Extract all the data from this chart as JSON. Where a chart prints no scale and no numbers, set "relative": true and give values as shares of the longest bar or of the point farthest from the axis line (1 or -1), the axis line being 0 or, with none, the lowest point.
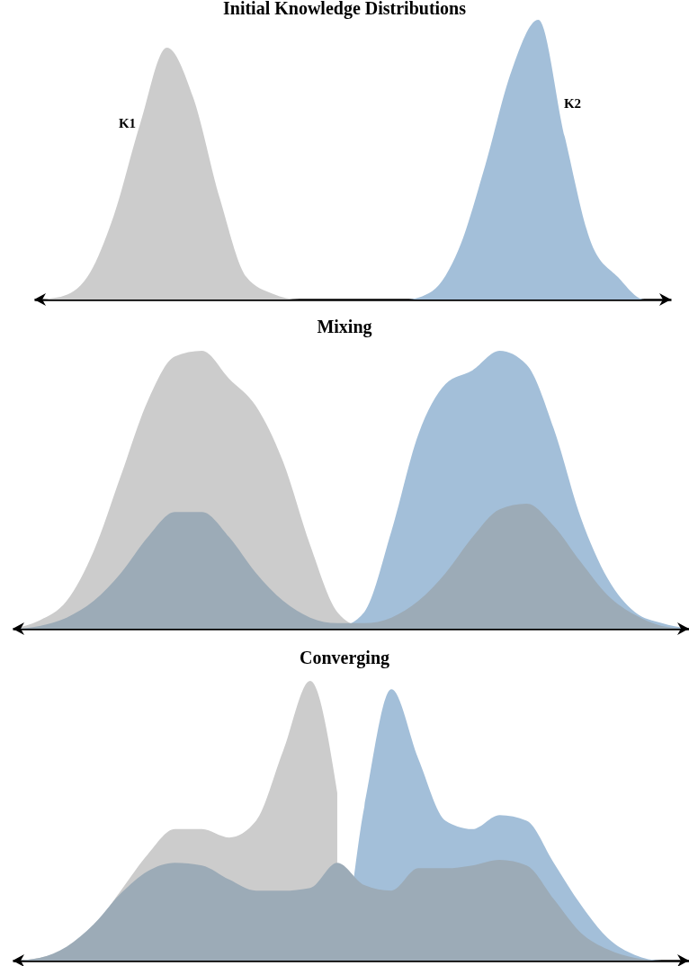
{
  "chart_data": [
    {
      "type": "area",
      "title": "Initial Knowledge Distributions",
      "relative": true,
      "categories": [
        null,
        null,
        null,
        null,
        null,
        null,
        null,
        null,
        null,
        null,
        null,
        null,
        null,
        null,
        null,
        null,
        null,
        null,
        null,
        null,
        null,
        null,
        null,
        null,
        null
      ],
      "series": [
        {
          "name": "K1",
          "color": "#cccccc",
          "values": [
            0,
            0.01,
            0.08,
            0.3,
            0.63,
            0.9,
            0.72,
            0.36,
            0.08,
            0.02,
            0,
            0,
            0,
            0,
            0,
            0,
            0,
            0,
            0,
            0,
            0,
            0,
            0,
            0,
            0
          ]
        },
        {
          "name": "K2",
          "color": "#a3bfd9",
          "values": [
            0,
            0,
            0,
            0,
            0,
            0,
            0,
            0,
            0,
            0,
            0,
            0,
            0,
            0,
            0,
            0.03,
            0.18,
            0.48,
            0.82,
            1,
            0.58,
            0.2,
            0.08,
            0,
            0
          ]
        }
      ]
    },
    {
      "type": "area",
      "title": "Mixing",
      "relative": true,
      "categories": [
        null,
        null,
        null,
        null,
        null,
        null,
        null,
        null,
        null,
        null,
        null,
        null,
        null,
        null,
        null,
        null,
        null,
        null,
        null,
        null,
        null,
        null,
        null,
        null,
        null,
        null
      ],
      "series": [
        {
          "color": "#cccccc",
          "values": [
            0,
            0.03,
            0.1,
            0.28,
            0.55,
            0.82,
            0.98,
            1,
            0.9,
            0.8,
            0.6,
            0.3,
            0.06,
            0,
            null,
            null,
            null,
            null,
            null,
            null,
            null,
            null,
            null,
            null,
            null,
            null
          ]
        },
        {
          "color": "#a3bfd9",
          "values": [
            null,
            null,
            null,
            null,
            null,
            null,
            null,
            null,
            null,
            null,
            null,
            null,
            0,
            0.06,
            0.35,
            0.7,
            0.88,
            0.93,
            1,
            0.95,
            0.72,
            0.4,
            0.18,
            0.06,
            0.02,
            0
          ]
        },
        {
          "color": "#9cabb7",
          "values": [
            0,
            0.01,
            0.04,
            0.1,
            0.2,
            0.33,
            0.42,
            0.42,
            0.33,
            0.2,
            0.1,
            0.04,
            0.02,
            0.02,
            0.04,
            0.1,
            0.2,
            0.33,
            0.43,
            0.45,
            0.37,
            0.24,
            0.12,
            0.05,
            0.01,
            0
          ]
        }
      ]
    },
    {
      "type": "area",
      "title": "Converging",
      "relative": true,
      "categories": [
        null,
        null,
        null,
        null,
        null,
        null,
        null,
        null,
        null,
        null,
        null,
        null,
        null,
        null,
        null,
        null,
        null,
        null,
        null,
        null,
        null,
        null,
        null,
        null,
        null,
        null
      ],
      "series": [
        {
          "color": "#cccccc",
          "values": [
            0,
            0.01,
            0.04,
            0.12,
            0.25,
            0.38,
            0.47,
            0.47,
            0.44,
            0.5,
            0.75,
            1,
            0.6,
            null,
            null,
            null,
            null,
            null,
            null,
            null,
            null,
            null,
            null,
            null,
            null,
            null
          ]
        },
        {
          "color": "#a3bfd9",
          "values": [
            0,
            0,
            0,
            0,
            0,
            0,
            0,
            0,
            0,
            0,
            0,
            0,
            0,
            0.55,
            0.97,
            0.72,
            0.5,
            0.47,
            0.52,
            0.5,
            0.35,
            0.2,
            0.08,
            0.02,
            0,
            0
          ]
        },
        {
          "color": "#9cabb7",
          "values": [
            0,
            0.01,
            0.05,
            0.13,
            0.24,
            0.32,
            0.35,
            0.34,
            0.29,
            0.25,
            0.25,
            0.26,
            0.35,
            0.27,
            0.25,
            0.33,
            0.33,
            0.34,
            0.36,
            0.34,
            0.22,
            0.1,
            0.04,
            0.01,
            0,
            0
          ]
        }
      ]
    }
  ]
}
